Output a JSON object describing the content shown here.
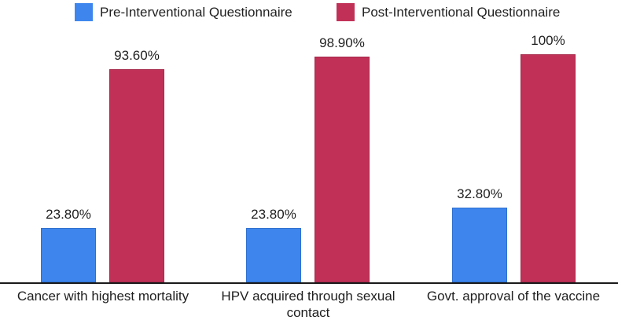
{
  "chart_data": {
    "type": "bar",
    "title": "",
    "xlabel": "",
    "ylabel": "",
    "ylim": [
      0,
      100
    ],
    "grid": false,
    "legend_position": "top",
    "categories": [
      "Cancer with highest mortality",
      "HPV acquired through sexual contact",
      "Govt. approval of the vaccine"
    ],
    "series": [
      {
        "name": "Pre-Interventional Questionnaire",
        "color": "#3E86EE",
        "values": [
          23.8,
          23.8,
          32.8
        ],
        "labels": [
          "23.80%",
          "23.80%",
          "32.80%"
        ]
      },
      {
        "name": "Post-Interventional Questionnaire",
        "color": "#C13157",
        "values": [
          93.6,
          98.9,
          100
        ],
        "labels": [
          "93.60%",
          "98.90%",
          "100%"
        ]
      }
    ],
    "axis_line_color": "#1a1a1a",
    "text_color": "#1f1f1f"
  }
}
